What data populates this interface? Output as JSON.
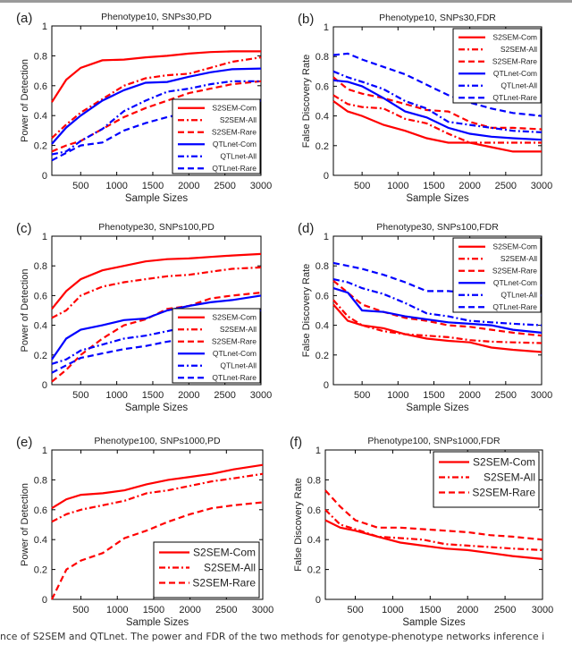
{
  "caption": "nce of S2SEM and QTLnet. The power and FDR of the two methods for genotype-phenotype networks inference i",
  "colors": {
    "S2SEM": "#ff0000",
    "QTLnet": "#0000ff"
  },
  "chart_data": [
    {
      "panel": "(a)",
      "type": "line",
      "title": "Phenotype10, SNPs30,PD",
      "xlabel": "Sample Sizes",
      "ylabel": "Power of Detection",
      "xlim": [
        100,
        3000
      ],
      "ylim": [
        0,
        1
      ],
      "xticks": [
        "500",
        "1000",
        "1500",
        "2000",
        "2500",
        "3000"
      ],
      "yticks": [
        "0",
        "0.2",
        "0.4",
        "0.6",
        "0.8",
        "1"
      ],
      "legend": "bottom-right",
      "x": [
        100,
        300,
        500,
        800,
        1100,
        1400,
        1700,
        2000,
        2300,
        2600,
        3000
      ],
      "series": [
        {
          "name": "S2SEM-Com",
          "color": "#ff0000",
          "style": "solid",
          "values": [
            0.49,
            0.64,
            0.72,
            0.77,
            0.775,
            0.79,
            0.8,
            0.815,
            0.825,
            0.83,
            0.83
          ]
        },
        {
          "name": "S2SEM-All",
          "color": "#ff0000",
          "style": "dashdot",
          "values": [
            0.25,
            0.34,
            0.42,
            0.51,
            0.6,
            0.65,
            0.67,
            0.68,
            0.72,
            0.76,
            0.79
          ]
        },
        {
          "name": "S2SEM-Rare",
          "color": "#ff0000",
          "style": "dashed",
          "values": [
            0.16,
            0.2,
            0.23,
            0.31,
            0.39,
            0.45,
            0.5,
            0.55,
            0.58,
            0.61,
            0.63
          ]
        },
        {
          "name": "QTLnet-Com",
          "color": "#0000ff",
          "style": "solid",
          "values": [
            0.21,
            0.32,
            0.4,
            0.5,
            0.57,
            0.62,
            0.625,
            0.66,
            0.69,
            0.71,
            0.715
          ]
        },
        {
          "name": "QTLnet-All",
          "color": "#0000ff",
          "style": "dashdot",
          "values": [
            0.14,
            0.16,
            0.23,
            0.31,
            0.43,
            0.5,
            0.56,
            0.58,
            0.61,
            0.63,
            0.63
          ]
        },
        {
          "name": "QTLnet-Rare",
          "color": "#0000ff",
          "style": "dashed",
          "values": [
            0.1,
            0.15,
            0.2,
            0.22,
            0.3,
            0.35,
            0.39,
            0.42,
            0.46,
            0.49,
            0.5
          ]
        }
      ]
    },
    {
      "panel": "(b)",
      "type": "line",
      "title": "Phenotype10, SNPs30,FDR",
      "xlabel": "Sample Sizes",
      "ylabel": "False Discovery Rate",
      "xlim": [
        100,
        3000
      ],
      "ylim": [
        0,
        1
      ],
      "xticks": [
        "500",
        "1000",
        "1500",
        "2000",
        "2500",
        "3000"
      ],
      "yticks": [
        "0",
        "0.2",
        "0.4",
        "0.6",
        "0.8",
        "1"
      ],
      "legend": "top-right",
      "x": [
        100,
        300,
        500,
        800,
        1100,
        1400,
        1700,
        2000,
        2300,
        2600,
        3000
      ],
      "series": [
        {
          "name": "S2SEM-Com",
          "color": "#ff0000",
          "style": "solid",
          "values": [
            0.5,
            0.43,
            0.4,
            0.34,
            0.3,
            0.25,
            0.22,
            0.22,
            0.19,
            0.16,
            0.16
          ]
        },
        {
          "name": "S2SEM-All",
          "color": "#ff0000",
          "style": "dashdot",
          "values": [
            0.54,
            0.48,
            0.46,
            0.45,
            0.38,
            0.35,
            0.28,
            0.22,
            0.22,
            0.22,
            0.22
          ]
        },
        {
          "name": "S2SEM-Rare",
          "color": "#ff0000",
          "style": "dashed",
          "values": [
            0.66,
            0.58,
            0.55,
            0.52,
            0.48,
            0.44,
            0.43,
            0.36,
            0.32,
            0.32,
            0.31
          ]
        },
        {
          "name": "QTLnet-Com",
          "color": "#0000ff",
          "style": "solid",
          "values": [
            0.64,
            0.63,
            0.6,
            0.52,
            0.43,
            0.39,
            0.32,
            0.28,
            0.26,
            0.25,
            0.24
          ]
        },
        {
          "name": "QTLnet-All",
          "color": "#0000ff",
          "style": "dashdot",
          "values": [
            0.7,
            0.66,
            0.63,
            0.58,
            0.5,
            0.45,
            0.36,
            0.34,
            0.32,
            0.3,
            0.29
          ]
        },
        {
          "name": "QTLnet-Rare",
          "color": "#0000ff",
          "style": "dashed",
          "values": [
            0.81,
            0.82,
            0.78,
            0.73,
            0.68,
            0.61,
            0.54,
            0.49,
            0.45,
            0.42,
            0.4
          ]
        }
      ]
    },
    {
      "panel": "(c)",
      "type": "line",
      "title": "Phenotype30, SNPs100,PD",
      "xlabel": "Sample Sizes",
      "ylabel": "Power of Detection",
      "xlim": [
        100,
        3000
      ],
      "ylim": [
        0,
        1
      ],
      "xticks": [
        "500",
        "1000",
        "1500",
        "2000",
        "2500",
        "3000"
      ],
      "yticks": [
        "0",
        "0.2",
        "0.4",
        "0.6",
        "0.8",
        "1"
      ],
      "legend": "bottom-right",
      "x": [
        100,
        300,
        500,
        800,
        1100,
        1400,
        1700,
        2000,
        2300,
        2600,
        3000
      ],
      "series": [
        {
          "name": "S2SEM-Com",
          "color": "#ff0000",
          "style": "solid",
          "values": [
            0.51,
            0.63,
            0.71,
            0.77,
            0.8,
            0.83,
            0.845,
            0.85,
            0.86,
            0.87,
            0.88
          ]
        },
        {
          "name": "S2SEM-All",
          "color": "#ff0000",
          "style": "dashdot",
          "values": [
            0.45,
            0.5,
            0.6,
            0.66,
            0.69,
            0.71,
            0.73,
            0.74,
            0.76,
            0.78,
            0.79
          ]
        },
        {
          "name": "S2SEM-Rare",
          "color": "#ff0000",
          "style": "dashed",
          "values": [
            0.02,
            0.1,
            0.2,
            0.31,
            0.4,
            0.44,
            0.51,
            0.53,
            0.58,
            0.6,
            0.62
          ]
        },
        {
          "name": "QTLnet-Com",
          "color": "#0000ff",
          "style": "solid",
          "values": [
            0.17,
            0.31,
            0.37,
            0.4,
            0.435,
            0.445,
            0.5,
            0.53,
            0.555,
            0.57,
            0.6
          ]
        },
        {
          "name": "QTLnet-All",
          "color": "#0000ff",
          "style": "dashdot",
          "values": [
            0.14,
            0.17,
            0.23,
            0.27,
            0.31,
            0.33,
            0.36,
            0.39,
            0.42,
            0.46,
            0.5
          ]
        },
        {
          "name": "QTLnet-Rare",
          "color": "#0000ff",
          "style": "dashed",
          "values": [
            0.08,
            0.13,
            0.18,
            0.21,
            0.24,
            0.26,
            0.29,
            0.31,
            0.33,
            0.34,
            0.35
          ]
        }
      ]
    },
    {
      "panel": "(d)",
      "type": "line",
      "title": "Phenotype30, SNPs100,FDR",
      "xlabel": "Sample Sizes",
      "ylabel": "False Discovery Rate",
      "xlim": [
        100,
        3000
      ],
      "ylim": [
        0,
        1
      ],
      "xticks": [
        "500",
        "1000",
        "1500",
        "2000",
        "2500",
        "3000"
      ],
      "yticks": [
        "0",
        "0.2",
        "0.4",
        "0.6",
        "0.8",
        "1"
      ],
      "legend": "top-right",
      "x": [
        100,
        300,
        500,
        800,
        1100,
        1400,
        1700,
        2000,
        2300,
        2600,
        3000
      ],
      "series": [
        {
          "name": "S2SEM-Com",
          "color": "#ff0000",
          "style": "solid",
          "values": [
            0.54,
            0.43,
            0.4,
            0.38,
            0.34,
            0.31,
            0.295,
            0.285,
            0.25,
            0.235,
            0.22
          ]
        },
        {
          "name": "S2SEM-All",
          "color": "#ff0000",
          "style": "dashdot",
          "values": [
            0.57,
            0.46,
            0.4,
            0.36,
            0.34,
            0.33,
            0.32,
            0.3,
            0.29,
            0.285,
            0.28
          ]
        },
        {
          "name": "S2SEM-Rare",
          "color": "#ff0000",
          "style": "dashed",
          "values": [
            0.7,
            0.62,
            0.54,
            0.49,
            0.45,
            0.43,
            0.4,
            0.39,
            0.37,
            0.35,
            0.33
          ]
        },
        {
          "name": "QTLnet-Com",
          "color": "#0000ff",
          "style": "solid",
          "values": [
            0.65,
            0.62,
            0.5,
            0.49,
            0.46,
            0.44,
            0.42,
            0.41,
            0.4,
            0.37,
            0.35
          ]
        },
        {
          "name": "QTLnet-All",
          "color": "#0000ff",
          "style": "dashdot",
          "values": [
            0.71,
            0.69,
            0.65,
            0.61,
            0.55,
            0.48,
            0.46,
            0.43,
            0.42,
            0.41,
            0.4
          ]
        },
        {
          "name": "QTLnet-Rare",
          "color": "#0000ff",
          "style": "dashed",
          "values": [
            0.82,
            0.8,
            0.78,
            0.74,
            0.69,
            0.63,
            0.63,
            0.62,
            0.62,
            0.62,
            0.6
          ]
        }
      ]
    },
    {
      "panel": "(e)",
      "type": "line",
      "title": "Phenotype100, SNPs1000,PD",
      "xlabel": "Sample Sizes",
      "ylabel": "Power of Detection",
      "xlim": [
        100,
        3000
      ],
      "ylim": [
        0,
        1
      ],
      "xticks": [
        "500",
        "1000",
        "1500",
        "2000",
        "2500",
        "3000"
      ],
      "yticks": [
        "0",
        "0.2",
        "0.4",
        "0.6",
        "0.8",
        "1"
      ],
      "legend": "bottom-right",
      "x": [
        100,
        300,
        500,
        800,
        1100,
        1400,
        1700,
        2000,
        2300,
        2600,
        3000
      ],
      "series": [
        {
          "name": "S2SEM-Com",
          "color": "#ff0000",
          "style": "solid",
          "values": [
            0.61,
            0.67,
            0.7,
            0.71,
            0.73,
            0.77,
            0.8,
            0.82,
            0.84,
            0.87,
            0.9
          ]
        },
        {
          "name": "S2SEM-All",
          "color": "#ff0000",
          "style": "dashdot",
          "values": [
            0.52,
            0.57,
            0.6,
            0.63,
            0.66,
            0.71,
            0.73,
            0.76,
            0.79,
            0.81,
            0.84
          ]
        },
        {
          "name": "S2SEM-Rare",
          "color": "#ff0000",
          "style": "dashed",
          "values": [
            0.0,
            0.2,
            0.26,
            0.31,
            0.41,
            0.46,
            0.52,
            0.57,
            0.61,
            0.63,
            0.65
          ]
        }
      ]
    },
    {
      "panel": "(f)",
      "type": "line",
      "title": "Phenotype100, SNPs1000,FDR",
      "xlabel": "Sample Sizes",
      "ylabel": "False Discovery Rate",
      "xlim": [
        100,
        3000
      ],
      "ylim": [
        0,
        1
      ],
      "xticks": [
        "500",
        "1000",
        "1500",
        "2000",
        "2500",
        "3000"
      ],
      "yticks": [
        "0",
        "0.2",
        "0.4",
        "0.6",
        "0.8",
        "1"
      ],
      "legend": "top-right",
      "x": [
        100,
        300,
        500,
        800,
        1100,
        1400,
        1700,
        2000,
        2300,
        2600,
        3000
      ],
      "series": [
        {
          "name": "S2SEM-Com",
          "color": "#ff0000",
          "style": "solid",
          "values": [
            0.53,
            0.48,
            0.46,
            0.42,
            0.38,
            0.36,
            0.34,
            0.33,
            0.31,
            0.29,
            0.27
          ]
        },
        {
          "name": "S2SEM-All",
          "color": "#ff0000",
          "style": "dashdot",
          "values": [
            0.6,
            0.5,
            0.47,
            0.42,
            0.41,
            0.4,
            0.37,
            0.36,
            0.35,
            0.34,
            0.33
          ]
        },
        {
          "name": "S2SEM-Rare",
          "color": "#ff0000",
          "style": "dashed",
          "values": [
            0.73,
            0.62,
            0.53,
            0.48,
            0.48,
            0.47,
            0.46,
            0.45,
            0.43,
            0.42,
            0.4
          ]
        }
      ]
    }
  ]
}
